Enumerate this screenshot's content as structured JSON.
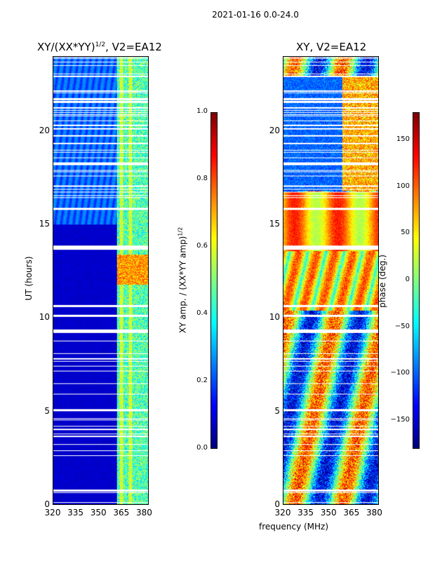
{
  "suptitle": "2021-01-16 0.0-24.0",
  "x_label": "frequency (MHz)",
  "chart_data": [
    {
      "type": "heatmap",
      "title_prefix": "XY/(XX*YY)",
      "title_exp": "1/2",
      "title_suffix": ", V2=EA12",
      "xlabel": "frequency (MHz)",
      "ylabel": "UT (hours)",
      "xlim": [
        320,
        383
      ],
      "ylim": [
        0,
        24
      ],
      "xticks": [
        "320",
        "335",
        "350",
        "365",
        "380"
      ],
      "yticks": [
        "0",
        "5",
        "10",
        "15",
        "20"
      ],
      "colorbar": {
        "label_main": "XY amp. / (XX*YY amp)",
        "label_exp": "1/2",
        "range": [
          0.0,
          1.0
        ],
        "ticks": [
          "0.0",
          "0.2",
          "0.4",
          "0.6",
          "0.8",
          "1.0"
        ],
        "colormap": "jet"
      }
    },
    {
      "type": "heatmap",
      "title": "XY, V2=EA12",
      "xlabel": "frequency (MHz)",
      "ylabel": "",
      "xlim": [
        320,
        383
      ],
      "ylim": [
        0,
        24
      ],
      "xticks": [
        "320",
        "335",
        "350",
        "365",
        "380"
      ],
      "yticks": [
        "0",
        "5",
        "10",
        "15",
        "20"
      ],
      "colorbar": {
        "label_main": "phase (deg.)",
        "range": [
          -180,
          180
        ],
        "ticks": [
          "−150",
          "−100",
          "−50",
          "0",
          "50",
          "100",
          "150"
        ],
        "colormap": "jet"
      }
    }
  ]
}
